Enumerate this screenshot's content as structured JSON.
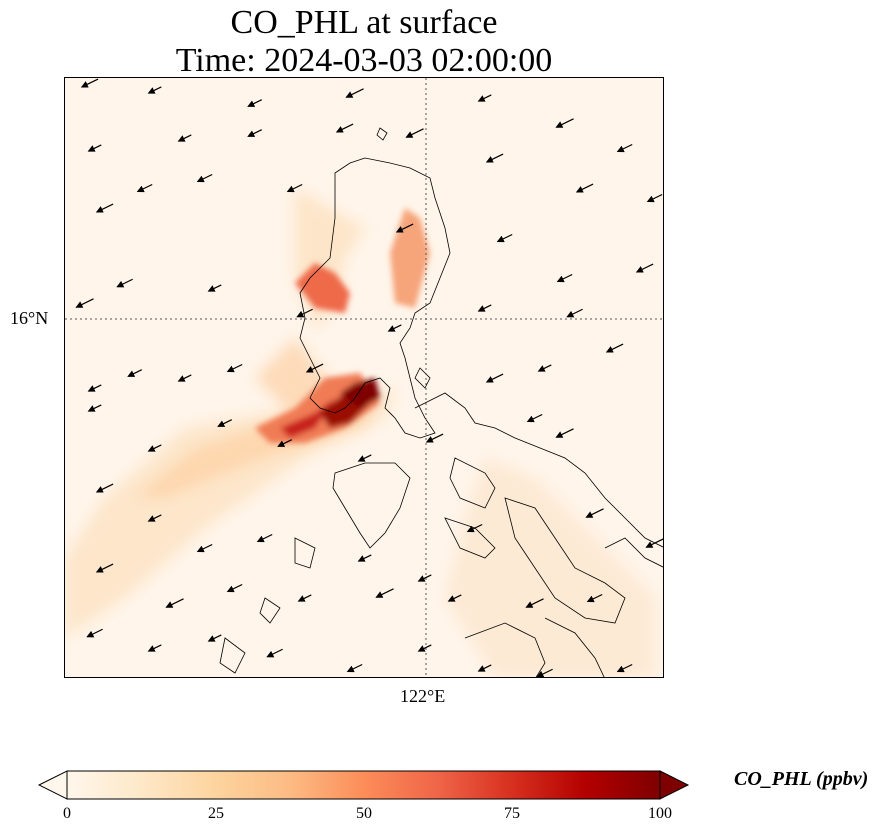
{
  "title": {
    "line1": "CO_PHL at surface",
    "line2": "Time: 2024-03-03 02:00:00"
  },
  "map": {
    "gridlines": {
      "latitude_label": "16°N",
      "longitude_label": "122°E"
    },
    "colormap": "OrRd",
    "colors": {
      "low": "#fff7ec",
      "mid": "#fdbb84",
      "high": "#7f0000",
      "coast": "#000000",
      "arrow": "#000000"
    }
  },
  "colorbar": {
    "label": "CO_PHL (ppbv)",
    "min": 0,
    "max": 100,
    "extend": "both",
    "ticks": [
      "0",
      "25",
      "50",
      "75",
      "100"
    ]
  }
}
